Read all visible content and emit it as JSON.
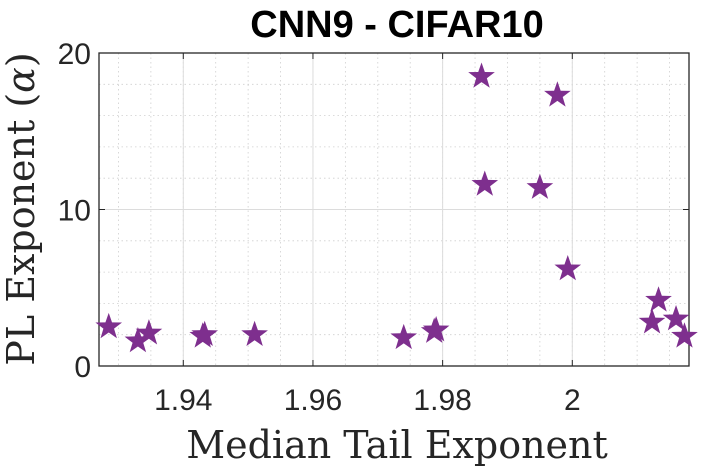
{
  "chart_data": {
    "type": "scatter",
    "title": "CNN9 - CIFAR10",
    "xlabel": "Median Tail Exponent",
    "ylabel_text": "PL Exponent (",
    "ylabel_symbol": "α",
    "ylabel_close": ")",
    "xlim": [
      1.927,
      2.018
    ],
    "ylim": [
      0,
      20
    ],
    "xticks": [
      1.94,
      1.96,
      1.98,
      2.0
    ],
    "xtick_labels": [
      "1.94",
      "1.96",
      "1.98",
      "2"
    ],
    "yticks": [
      0,
      10,
      20
    ],
    "ytick_labels": [
      "0",
      "10",
      "20"
    ],
    "grid": true,
    "minor_grid": true,
    "marker": "star",
    "marker_color": "#7E2F8E",
    "points": [
      {
        "x": 1.9285,
        "y": 2.5
      },
      {
        "x": 1.933,
        "y": 1.6
      },
      {
        "x": 1.9347,
        "y": 2.1
      },
      {
        "x": 1.943,
        "y": 1.9
      },
      {
        "x": 1.9433,
        "y": 2.0
      },
      {
        "x": 1.951,
        "y": 2.0
      },
      {
        "x": 1.974,
        "y": 1.8
      },
      {
        "x": 1.9787,
        "y": 2.2
      },
      {
        "x": 1.979,
        "y": 2.3
      },
      {
        "x": 1.986,
        "y": 18.5
      },
      {
        "x": 1.9865,
        "y": 11.6
      },
      {
        "x": 1.995,
        "y": 11.4
      },
      {
        "x": 1.9977,
        "y": 17.3
      },
      {
        "x": 1.9993,
        "y": 6.2
      },
      {
        "x": 2.0123,
        "y": 2.8
      },
      {
        "x": 2.0133,
        "y": 4.2
      },
      {
        "x": 2.016,
        "y": 3.0
      },
      {
        "x": 2.0173,
        "y": 1.9
      }
    ]
  }
}
